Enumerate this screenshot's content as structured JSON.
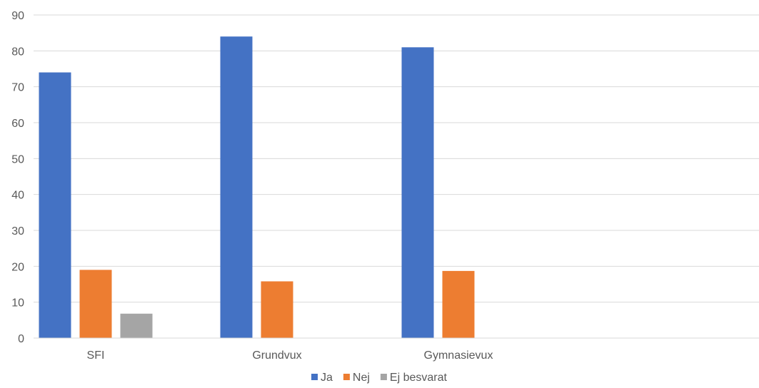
{
  "chart_data": {
    "type": "bar",
    "title": "",
    "xlabel": "",
    "ylabel": "",
    "categories": [
      "SFI",
      "Grundvux",
      "Gymnasievux",
      ""
    ],
    "ylim": [
      0,
      90
    ],
    "yticks": [
      0,
      10,
      20,
      30,
      40,
      50,
      60,
      70,
      80,
      90
    ],
    "grid": true,
    "legend_position": "bottom",
    "series": [
      {
        "name": "Ja",
        "color": "#4472c4",
        "values": [
          74,
          84,
          81,
          null
        ]
      },
      {
        "name": "Nej",
        "color": "#ed7d31",
        "values": [
          19,
          15.8,
          18.7,
          null
        ]
      },
      {
        "name": "Ej besvarat",
        "color": "#a5a5a5",
        "values": [
          6.8,
          null,
          null,
          null
        ]
      }
    ]
  }
}
